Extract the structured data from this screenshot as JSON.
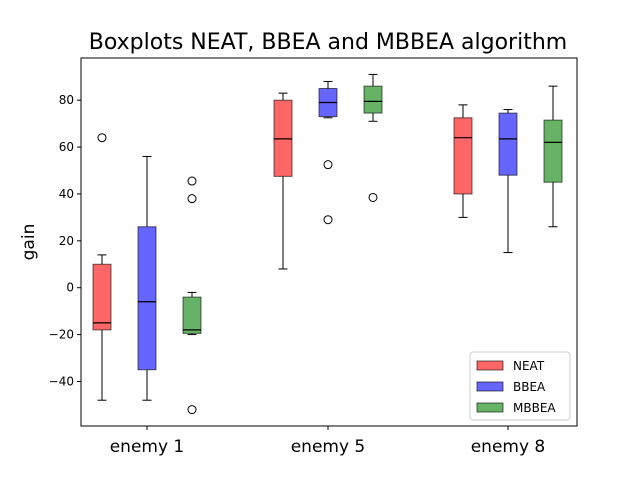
{
  "chart_data": {
    "type": "boxplot",
    "title": "Boxplots NEAT, BBEA and MBBEA algorithm",
    "ylabel": "gain",
    "xlabel": "",
    "ylim": [
      -59,
      98
    ],
    "yticks": [
      -40,
      -20,
      0,
      20,
      40,
      60,
      80
    ],
    "grid": false,
    "legend_position": "lower-right",
    "categories": [
      "enemy 1",
      "enemy 5",
      "enemy 8"
    ],
    "series": [
      {
        "name": "NEAT",
        "color": "#ff0000",
        "boxes": [
          {
            "whisker_low": -48,
            "q1": -18,
            "median": -15,
            "q3": 10,
            "whisker_high": 14,
            "outliers": [
              64
            ]
          },
          {
            "whisker_low": 8,
            "q1": 47.5,
            "median": 63.5,
            "q3": 80,
            "whisker_high": 83,
            "outliers": []
          },
          {
            "whisker_low": 30,
            "q1": 40,
            "median": 64,
            "q3": 72.5,
            "whisker_high": 78,
            "outliers": []
          }
        ]
      },
      {
        "name": "BBEA",
        "color": "#0000ff",
        "boxes": [
          {
            "whisker_low": -48,
            "q1": -35,
            "median": -6,
            "q3": 26,
            "whisker_high": 56,
            "outliers": []
          },
          {
            "whisker_low": 72.5,
            "q1": 73,
            "median": 79,
            "q3": 85,
            "whisker_high": 88,
            "outliers": [
              52.5,
              29
            ]
          },
          {
            "whisker_low": 15,
            "q1": 48,
            "median": 63.5,
            "q3": 74.5,
            "whisker_high": 76,
            "outliers": []
          }
        ]
      },
      {
        "name": "MBBEA",
        "color": "#008000",
        "boxes": [
          {
            "whisker_low": -20,
            "q1": -19.5,
            "median": -18,
            "q3": -4,
            "whisker_high": -2,
            "outliers": [
              45.5,
              38,
              -52
            ]
          },
          {
            "whisker_low": 71,
            "q1": 74.5,
            "median": 79.5,
            "q3": 86,
            "whisker_high": 91,
            "outliers": [
              38.5
            ]
          },
          {
            "whisker_low": 26,
            "q1": 45,
            "median": 62,
            "q3": 71.5,
            "whisker_high": 86,
            "outliers": []
          }
        ]
      }
    ]
  }
}
